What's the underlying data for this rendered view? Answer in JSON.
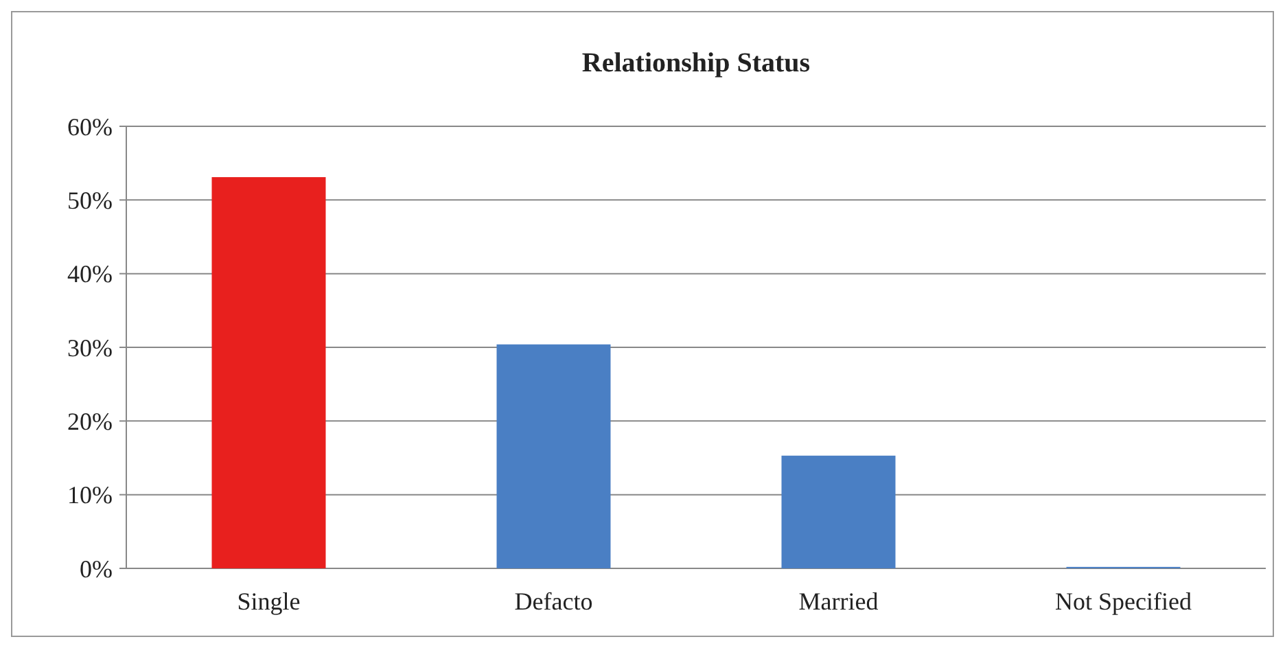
{
  "chart_data": {
    "type": "bar",
    "title": "Relationship Status",
    "categories": [
      "Single",
      "Defacto",
      "Married",
      "Not Specified"
    ],
    "values": [
      53.1,
      30.4,
      15.3,
      0.2
    ],
    "colors": [
      "#e8201e",
      "#4a7fc4",
      "#4a7fc4",
      "#4a7fc4"
    ],
    "ylim": [
      0,
      60
    ],
    "yticks": [
      {
        "value": 0,
        "label": "0%"
      },
      {
        "value": 10,
        "label": "10%"
      },
      {
        "value": 20,
        "label": "20%"
      },
      {
        "value": 30,
        "label": "30%"
      },
      {
        "value": 40,
        "label": "40%"
      },
      {
        "value": 50,
        "label": "50%"
      },
      {
        "value": 60,
        "label": "60%"
      }
    ],
    "grid": "y"
  }
}
